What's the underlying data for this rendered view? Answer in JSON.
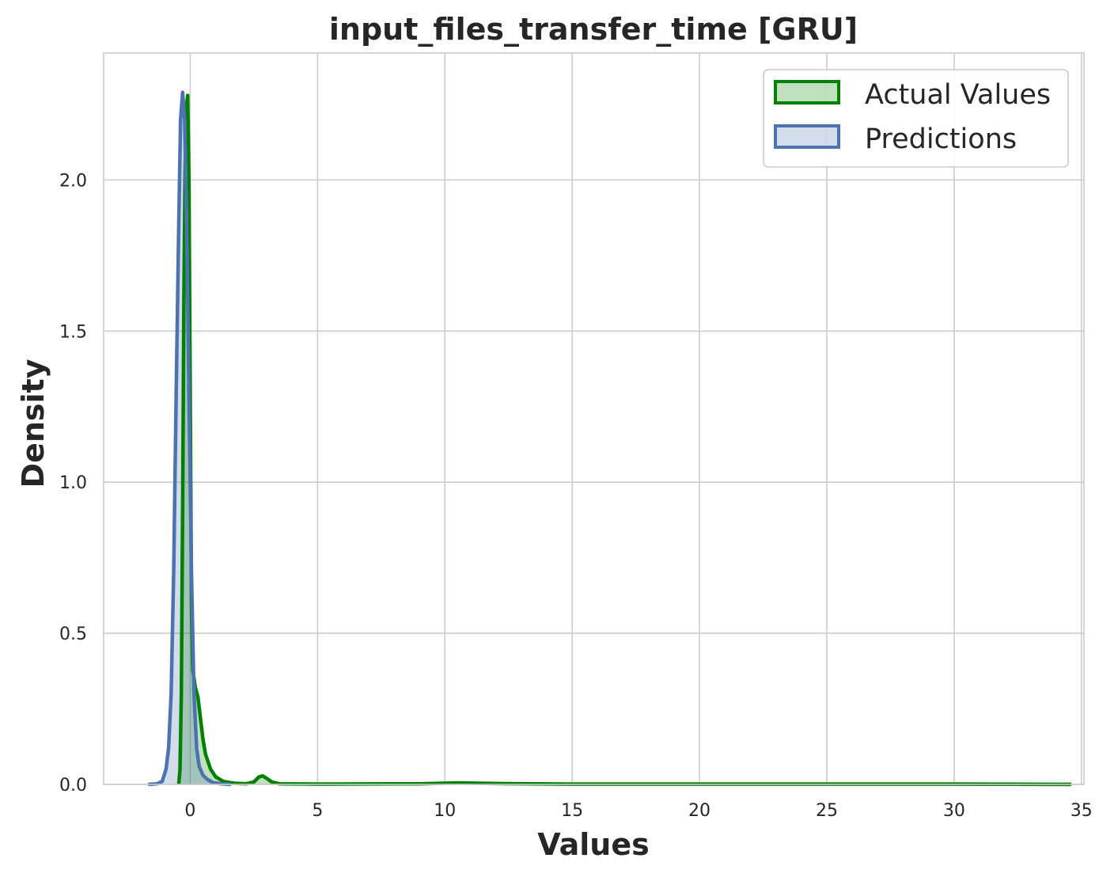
{
  "chart_data": {
    "type": "area",
    "title": "input_files_transfer_time [GRU]",
    "xlabel": "Values",
    "ylabel": "Density",
    "xlim": [
      -3.4,
      35.1
    ],
    "ylim": [
      0,
      2.42
    ],
    "xticks": [
      0,
      5,
      10,
      15,
      20,
      25,
      30,
      35
    ],
    "xtick_labels": [
      "0",
      "5",
      "10",
      "15",
      "20",
      "25",
      "30",
      "35"
    ],
    "yticks": [
      0.0,
      0.5,
      1.0,
      1.5,
      2.0
    ],
    "ytick_labels": [
      "0.0",
      "0.5",
      "1.0",
      "1.5",
      "2.0"
    ],
    "grid": true,
    "legend_position": "top-right",
    "series": [
      {
        "name": "Actual Values",
        "line_color": "#008000",
        "fill_color": "#008000",
        "fill_opacity": 0.25,
        "points": [
          [
            -0.45,
            0.0
          ],
          [
            -0.4,
            0.05
          ],
          [
            -0.35,
            0.3
          ],
          [
            -0.3,
            0.9
          ],
          [
            -0.25,
            1.6
          ],
          [
            -0.2,
            2.05
          ],
          [
            -0.15,
            2.24
          ],
          [
            -0.1,
            2.28
          ],
          [
            -0.05,
            2.0
          ],
          [
            0.0,
            1.3
          ],
          [
            0.05,
            0.6
          ],
          [
            0.1,
            0.38
          ],
          [
            0.2,
            0.32
          ],
          [
            0.3,
            0.29
          ],
          [
            0.4,
            0.22
          ],
          [
            0.5,
            0.15
          ],
          [
            0.6,
            0.1
          ],
          [
            0.8,
            0.05
          ],
          [
            1.0,
            0.025
          ],
          [
            1.3,
            0.01
          ],
          [
            1.7,
            0.004
          ],
          [
            2.2,
            0.002
          ],
          [
            2.5,
            0.008
          ],
          [
            2.7,
            0.025
          ],
          [
            2.85,
            0.028
          ],
          [
            3.0,
            0.02
          ],
          [
            3.2,
            0.008
          ],
          [
            3.5,
            0.002
          ],
          [
            5.0,
            0.001
          ],
          [
            9.0,
            0.002
          ],
          [
            10.5,
            0.005
          ],
          [
            12.0,
            0.003
          ],
          [
            15.0,
            0.001
          ],
          [
            20.0,
            0.001
          ],
          [
            25.0,
            0.001
          ],
          [
            30.0,
            0.001
          ],
          [
            34.6,
            0.0
          ]
        ]
      },
      {
        "name": "Predictions",
        "line_color": "#4c72b0",
        "fill_color": "#4c72b0",
        "fill_opacity": 0.25,
        "points": [
          [
            -1.65,
            0.0
          ],
          [
            -1.3,
            0.002
          ],
          [
            -1.1,
            0.01
          ],
          [
            -0.95,
            0.05
          ],
          [
            -0.85,
            0.12
          ],
          [
            -0.75,
            0.3
          ],
          [
            -0.65,
            0.7
          ],
          [
            -0.55,
            1.3
          ],
          [
            -0.45,
            1.85
          ],
          [
            -0.38,
            2.2
          ],
          [
            -0.3,
            2.29
          ],
          [
            -0.22,
            2.2
          ],
          [
            -0.15,
            1.9
          ],
          [
            -0.05,
            1.3
          ],
          [
            0.05,
            0.7
          ],
          [
            0.15,
            0.3
          ],
          [
            0.25,
            0.12
          ],
          [
            0.35,
            0.06
          ],
          [
            0.5,
            0.03
          ],
          [
            0.7,
            0.015
          ],
          [
            0.9,
            0.006
          ],
          [
            1.2,
            0.002
          ],
          [
            1.6,
            0.0
          ]
        ]
      }
    ]
  }
}
